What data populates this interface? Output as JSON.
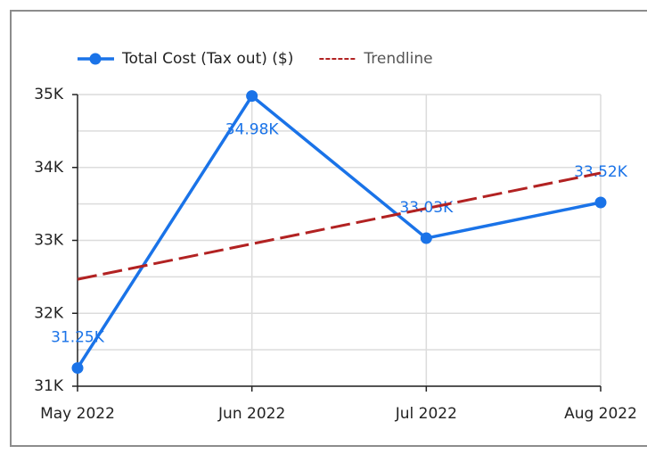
{
  "chart_data": {
    "type": "line",
    "categories": [
      "May 2022",
      "Jun 2022",
      "Jul 2022",
      "Aug 2022"
    ],
    "series": [
      {
        "name": "Total Cost (Tax out) ($)",
        "color": "#1a73e8",
        "values": [
          31250,
          34980,
          33030,
          33520
        ],
        "value_labels": [
          "31.25K",
          "34.98K",
          "33.03K",
          "33.52K"
        ]
      },
      {
        "name": "Trendline",
        "color": "#b22222",
        "dashed": true,
        "values": [
          32466,
          32952,
          33438,
          33924
        ]
      }
    ],
    "ylim": [
      31000,
      35000
    ],
    "yticks": [
      {
        "value": 31000,
        "label": "31K"
      },
      {
        "value": 32000,
        "label": "32K"
      },
      {
        "value": 33000,
        "label": "33K"
      },
      {
        "value": 34000,
        "label": "34K"
      },
      {
        "value": 35000,
        "label": "35K"
      }
    ],
    "minor_yticks": [
      31500,
      32500,
      33500,
      34500
    ],
    "grid": true,
    "legend": "top"
  }
}
